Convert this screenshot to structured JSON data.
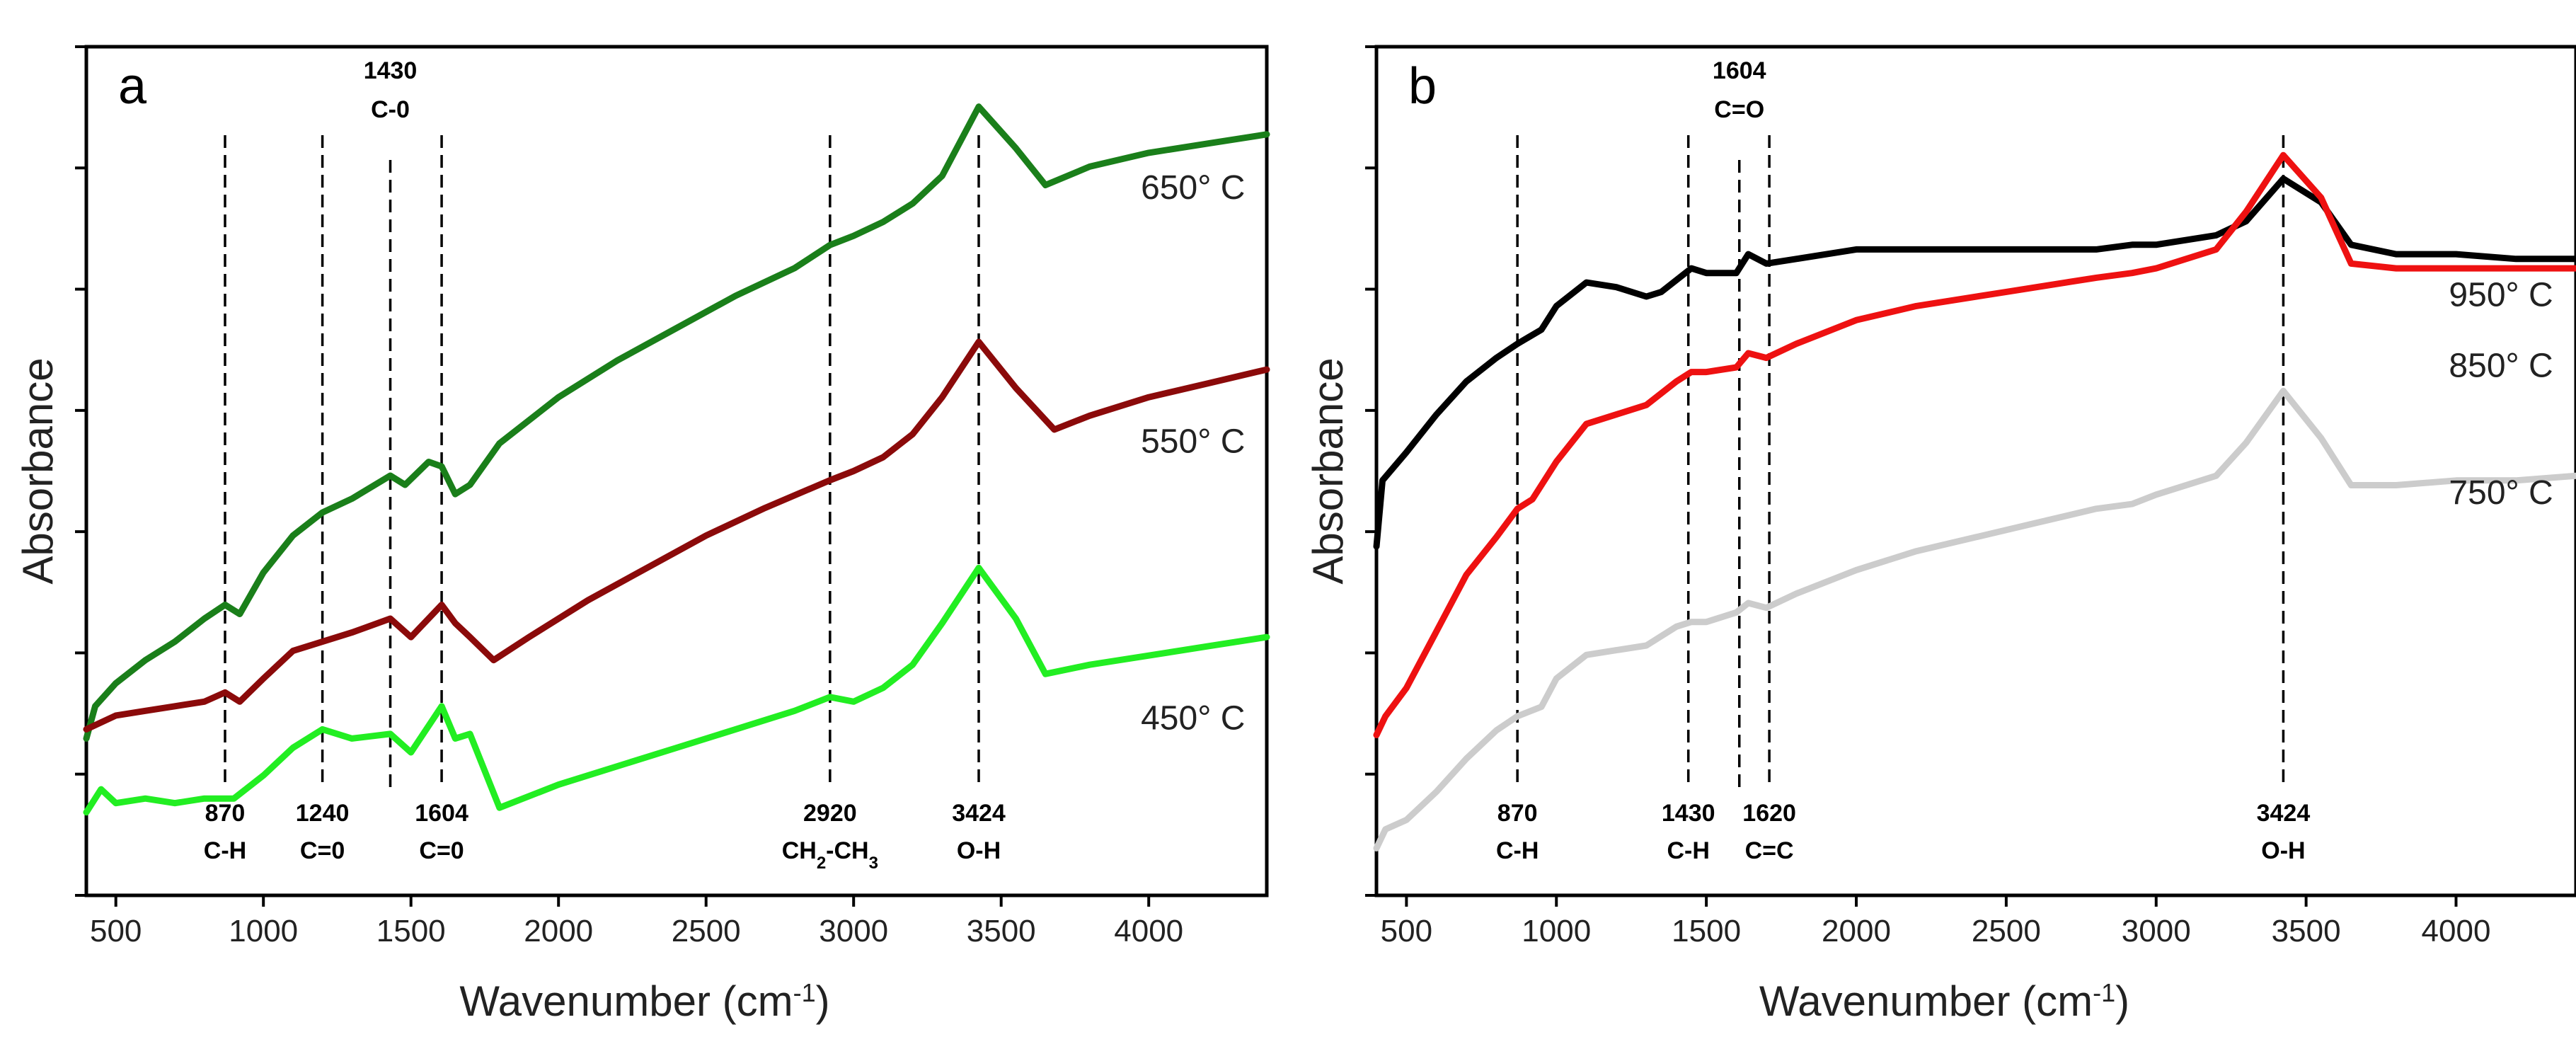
{
  "chart_data": [
    {
      "type": "line",
      "panel_label": "a",
      "xlabel": "Wavenumber (cm",
      "xlabel_sup": "-1",
      "xlabel_end": ")",
      "ylabel": "Absorbance",
      "xlim": [
        400,
        4400
      ],
      "x_ticks": [
        500,
        1000,
        1500,
        2000,
        2500,
        3000,
        3500,
        4000
      ],
      "grid": false,
      "series": [
        {
          "name": "650° C",
          "color": "#1a7f1a",
          "points": [
            [
              400,
              1.5
            ],
            [
              430,
              1.85
            ],
            [
              500,
              2.1
            ],
            [
              600,
              2.35
            ],
            [
              700,
              2.55
            ],
            [
              800,
              2.8
            ],
            [
              870,
              2.95
            ],
            [
              920,
              2.85
            ],
            [
              1000,
              3.3
            ],
            [
              1100,
              3.7
            ],
            [
              1200,
              3.95
            ],
            [
              1300,
              4.1
            ],
            [
              1430,
              4.35
            ],
            [
              1480,
              4.25
            ],
            [
              1560,
              4.5
            ],
            [
              1604,
              4.45
            ],
            [
              1650,
              4.15
            ],
            [
              1700,
              4.25
            ],
            [
              1800,
              4.7
            ],
            [
              2000,
              5.2
            ],
            [
              2200,
              5.6
            ],
            [
              2400,
              5.95
            ],
            [
              2600,
              6.3
            ],
            [
              2800,
              6.6
            ],
            [
              2920,
              6.85
            ],
            [
              3000,
              6.95
            ],
            [
              3100,
              7.1
            ],
            [
              3200,
              7.3
            ],
            [
              3300,
              7.6
            ],
            [
              3424,
              8.35
            ],
            [
              3550,
              7.9
            ],
            [
              3650,
              7.5
            ],
            [
              3800,
              7.7
            ],
            [
              4000,
              7.85
            ],
            [
              4200,
              7.95
            ],
            [
              4400,
              8.05
            ]
          ]
        },
        {
          "name": "550° C",
          "color": "#8b0a0a",
          "points": [
            [
              400,
              1.6
            ],
            [
              500,
              1.75
            ],
            [
              600,
              1.8
            ],
            [
              700,
              1.85
            ],
            [
              800,
              1.9
            ],
            [
              870,
              2.0
            ],
            [
              920,
              1.9
            ],
            [
              1000,
              2.15
            ],
            [
              1100,
              2.45
            ],
            [
              1200,
              2.55
            ],
            [
              1300,
              2.65
            ],
            [
              1430,
              2.8
            ],
            [
              1500,
              2.6
            ],
            [
              1604,
              2.95
            ],
            [
              1650,
              2.75
            ],
            [
              1700,
              2.6
            ],
            [
              1780,
              2.35
            ],
            [
              1900,
              2.6
            ],
            [
              2100,
              3.0
            ],
            [
              2300,
              3.35
            ],
            [
              2500,
              3.7
            ],
            [
              2700,
              4.0
            ],
            [
              2920,
              4.3
            ],
            [
              3000,
              4.4
            ],
            [
              3100,
              4.55
            ],
            [
              3200,
              4.8
            ],
            [
              3300,
              5.2
            ],
            [
              3424,
              5.8
            ],
            [
              3550,
              5.3
            ],
            [
              3680,
              4.85
            ],
            [
              3800,
              5.0
            ],
            [
              4000,
              5.2
            ],
            [
              4200,
              5.35
            ],
            [
              4400,
              5.5
            ]
          ]
        },
        {
          "name": "450° C",
          "color": "#22ee22",
          "points": [
            [
              400,
              0.7
            ],
            [
              450,
              0.95
            ],
            [
              500,
              0.8
            ],
            [
              600,
              0.85
            ],
            [
              700,
              0.8
            ],
            [
              800,
              0.85
            ],
            [
              900,
              0.85
            ],
            [
              1000,
              1.1
            ],
            [
              1100,
              1.4
            ],
            [
              1200,
              1.6
            ],
            [
              1300,
              1.5
            ],
            [
              1430,
              1.55
            ],
            [
              1500,
              1.35
            ],
            [
              1604,
              1.85
            ],
            [
              1650,
              1.5
            ],
            [
              1700,
              1.55
            ],
            [
              1800,
              0.75
            ],
            [
              2000,
              1.0
            ],
            [
              2200,
              1.2
            ],
            [
              2400,
              1.4
            ],
            [
              2600,
              1.6
            ],
            [
              2800,
              1.8
            ],
            [
              2920,
              1.95
            ],
            [
              3000,
              1.9
            ],
            [
              3100,
              2.05
            ],
            [
              3200,
              2.3
            ],
            [
              3300,
              2.75
            ],
            [
              3424,
              3.35
            ],
            [
              3550,
              2.8
            ],
            [
              3650,
              2.2
            ],
            [
              3800,
              2.3
            ],
            [
              4000,
              2.4
            ],
            [
              4200,
              2.5
            ],
            [
              4400,
              2.6
            ]
          ]
        }
      ],
      "series_label_values": [
        [
          4150,
          7.35
        ],
        [
          4150,
          4.6
        ],
        [
          4150,
          1.6
        ]
      ],
      "annotations": [
        {
          "x": 870,
          "number": "870",
          "group": "C-H",
          "sub": "",
          "tail": "",
          "pos": "bottom"
        },
        {
          "x": 1200,
          "number": "1240",
          "group": "C=0",
          "sub": "",
          "tail": "",
          "pos": "bottom"
        },
        {
          "x": 1430,
          "number": "1430",
          "group": "C-0",
          "sub": "",
          "tail": "",
          "pos": "top"
        },
        {
          "x": 1604,
          "number": "1604",
          "group": "C=0",
          "sub": "",
          "tail": "",
          "pos": "bottom"
        },
        {
          "x": 2920,
          "number": "2920",
          "group": "CH",
          "sub": "2",
          "tail": "-CH",
          "sub2": "3",
          "pos": "bottom"
        },
        {
          "x": 3424,
          "number": "3424",
          "group": "O-H",
          "sub": "",
          "tail": "",
          "pos": "bottom"
        }
      ],
      "ylim": [
        -0.2,
        9.0
      ]
    },
    {
      "type": "line",
      "panel_label": "b",
      "xlabel": "Wavenumber (cm",
      "xlabel_sup": "-1",
      "xlabel_end": ")",
      "ylabel": "Absorbance",
      "xlim": [
        400,
        4400
      ],
      "x_ticks": [
        500,
        1000,
        1500,
        2000,
        2500,
        3000,
        3500,
        4000
      ],
      "grid": false,
      "series": [
        {
          "name": "950° C",
          "color": "#000000",
          "points": [
            [
              400,
              3.2
            ],
            [
              420,
              3.9
            ],
            [
              500,
              4.2
            ],
            [
              600,
              4.6
            ],
            [
              700,
              4.95
            ],
            [
              800,
              5.2
            ],
            [
              870,
              5.35
            ],
            [
              950,
              5.5
            ],
            [
              1000,
              5.75
            ],
            [
              1100,
              6.0
            ],
            [
              1200,
              5.95
            ],
            [
              1300,
              5.85
            ],
            [
              1350,
              5.9
            ],
            [
              1450,
              6.15
            ],
            [
              1500,
              6.1
            ],
            [
              1600,
              6.1
            ],
            [
              1640,
              6.3
            ],
            [
              1700,
              6.2
            ],
            [
              1800,
              6.25
            ],
            [
              2000,
              6.35
            ],
            [
              2200,
              6.35
            ],
            [
              2500,
              6.35
            ],
            [
              2800,
              6.35
            ],
            [
              2920,
              6.4
            ],
            [
              3000,
              6.4
            ],
            [
              3200,
              6.5
            ],
            [
              3300,
              6.65
            ],
            [
              3424,
              7.1
            ],
            [
              3550,
              6.85
            ],
            [
              3650,
              6.4
            ],
            [
              3800,
              6.3
            ],
            [
              4000,
              6.3
            ],
            [
              4200,
              6.25
            ],
            [
              4400,
              6.25
            ]
          ]
        },
        {
          "name": "850° C",
          "color": "#ee1111",
          "points": [
            [
              400,
              1.2
            ],
            [
              430,
              1.4
            ],
            [
              500,
              1.7
            ],
            [
              600,
              2.3
            ],
            [
              700,
              2.9
            ],
            [
              800,
              3.3
            ],
            [
              870,
              3.6
            ],
            [
              920,
              3.7
            ],
            [
              1000,
              4.1
            ],
            [
              1100,
              4.5
            ],
            [
              1200,
              4.6
            ],
            [
              1300,
              4.7
            ],
            [
              1400,
              4.95
            ],
            [
              1450,
              5.05
            ],
            [
              1500,
              5.05
            ],
            [
              1600,
              5.1
            ],
            [
              1640,
              5.25
            ],
            [
              1700,
              5.2
            ],
            [
              1800,
              5.35
            ],
            [
              2000,
              5.6
            ],
            [
              2200,
              5.75
            ],
            [
              2500,
              5.9
            ],
            [
              2800,
              6.05
            ],
            [
              2920,
              6.1
            ],
            [
              3000,
              6.15
            ],
            [
              3200,
              6.35
            ],
            [
              3300,
              6.75
            ],
            [
              3424,
              7.35
            ],
            [
              3550,
              6.9
            ],
            [
              3650,
              6.2
            ],
            [
              3800,
              6.15
            ],
            [
              4000,
              6.15
            ],
            [
              4200,
              6.15
            ],
            [
              4400,
              6.15
            ]
          ]
        },
        {
          "name": "750° C",
          "color": "#cccccc",
          "points": [
            [
              400,
              0.0
            ],
            [
              430,
              0.2
            ],
            [
              500,
              0.3
            ],
            [
              600,
              0.6
            ],
            [
              700,
              0.95
            ],
            [
              800,
              1.25
            ],
            [
              870,
              1.4
            ],
            [
              950,
              1.5
            ],
            [
              1000,
              1.8
            ],
            [
              1100,
              2.05
            ],
            [
              1200,
              2.1
            ],
            [
              1300,
              2.15
            ],
            [
              1400,
              2.35
            ],
            [
              1450,
              2.4
            ],
            [
              1500,
              2.4
            ],
            [
              1600,
              2.5
            ],
            [
              1640,
              2.6
            ],
            [
              1700,
              2.55
            ],
            [
              1800,
              2.7
            ],
            [
              2000,
              2.95
            ],
            [
              2200,
              3.15
            ],
            [
              2400,
              3.3
            ],
            [
              2600,
              3.45
            ],
            [
              2800,
              3.6
            ],
            [
              2920,
              3.65
            ],
            [
              3000,
              3.75
            ],
            [
              3200,
              3.95
            ],
            [
              3300,
              4.3
            ],
            [
              3424,
              4.85
            ],
            [
              3550,
              4.35
            ],
            [
              3650,
              3.85
            ],
            [
              3800,
              3.85
            ],
            [
              4000,
              3.9
            ],
            [
              4200,
              3.9
            ],
            [
              4400,
              3.95
            ]
          ]
        }
      ],
      "series_label_values": [
        [
          4150,
          5.75
        ],
        [
          4150,
          5.0
        ],
        [
          4150,
          3.65
        ]
      ],
      "annotations": [
        {
          "x": 870,
          "number": "870",
          "group": "C-H",
          "sub": "",
          "tail": "",
          "pos": "bottom"
        },
        {
          "x": 1440,
          "number": "1430",
          "group": "C-H",
          "sub": "",
          "tail": "",
          "pos": "bottom"
        },
        {
          "x": 1610,
          "number": "1604",
          "group": "C=O",
          "sub": "",
          "tail": "",
          "pos": "top"
        },
        {
          "x": 1710,
          "number": "1620",
          "group": "C=C",
          "sub": "",
          "tail": "",
          "pos": "bottom"
        },
        {
          "x": 3424,
          "number": "3424",
          "group": "O-H",
          "sub": "",
          "tail": "",
          "pos": "bottom"
        }
      ],
      "ylim": [
        -0.5,
        8.5
      ]
    }
  ]
}
